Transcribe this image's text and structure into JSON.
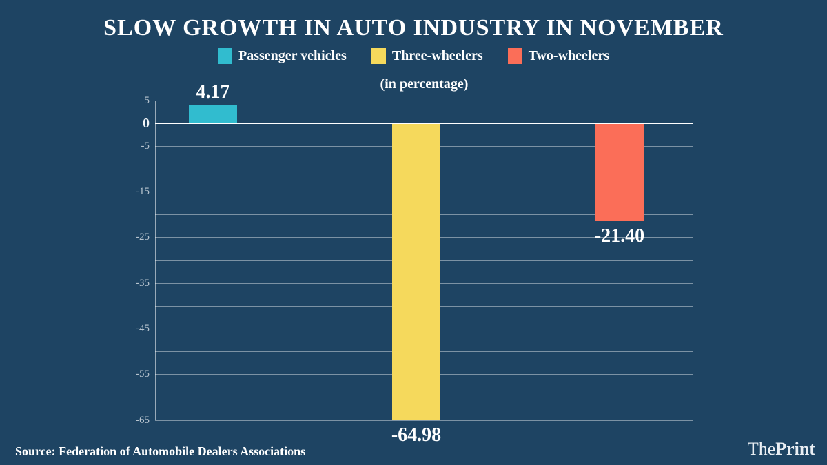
{
  "title": "SLOW GROWTH IN AUTO INDUSTRY IN NOVEMBER",
  "subtitle": "(in percentage)",
  "legend": {
    "items": [
      {
        "label": "Passenger vehicles",
        "color": "#31bccf"
      },
      {
        "label": "Three-wheelers",
        "color": "#f5d95c"
      },
      {
        "label": "Two-wheelers",
        "color": "#fb6e58"
      }
    ]
  },
  "chart_data": {
    "type": "bar",
    "title": "SLOW GROWTH IN AUTO INDUSTRY IN NOVEMBER",
    "subtitle": "(in percentage)",
    "categories": [
      "Passenger vehicles",
      "Three-wheelers",
      "Two-wheelers"
    ],
    "values": [
      4.17,
      -64.98,
      -21.4
    ],
    "value_labels": [
      "4.17",
      "-64.98",
      "-21.40"
    ],
    "colors": [
      "#31bccf",
      "#f5d95c",
      "#fb6e58"
    ],
    "ylim": [
      -65,
      5
    ],
    "grid": true,
    "grid_step": 5,
    "yticks": [
      {
        "label": "5",
        "value": 5
      },
      {
        "label": "0",
        "value": 0
      },
      {
        "label": "-5",
        "value": -5
      },
      {
        "label": "-15",
        "value": -15
      },
      {
        "label": "-25",
        "value": -25
      },
      {
        "label": "-35",
        "value": -35
      },
      {
        "label": "-45",
        "value": -45
      },
      {
        "label": "-55",
        "value": -55
      },
      {
        "label": "-65",
        "value": -65
      }
    ],
    "legend_position": "top"
  },
  "footer": {
    "source": "Source: Federation of Automobile Dealers Associations",
    "brand": {
      "the": "The",
      "print": "Print"
    }
  },
  "colors": {
    "background": "#1e4463",
    "gridline": "rgba(255,255,255,0.42)",
    "zero_line": "#ffffff",
    "tick_text": "#b6c3ce",
    "text": "#ffffff"
  }
}
